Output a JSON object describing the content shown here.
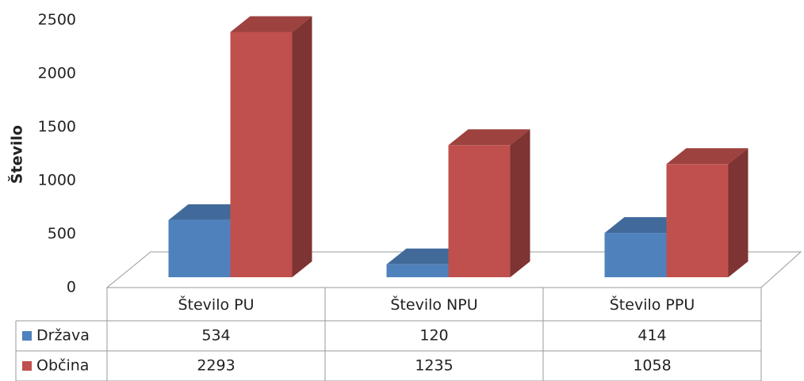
{
  "chart_data": {
    "type": "bar3d",
    "ylabel": "Število",
    "categories": [
      "Število PU",
      "Število NPU",
      "Število PPU"
    ],
    "series": [
      {
        "name": "Država",
        "color": "#4f81bd",
        "values": [
          534,
          120,
          414
        ]
      },
      {
        "name": "Občina",
        "color": "#c0504d",
        "values": [
          2293,
          1235,
          1058
        ]
      }
    ],
    "ylim": [
      0,
      2500
    ],
    "yticks": [
      0,
      500,
      1000,
      1500,
      2000,
      2500
    ],
    "grid": false,
    "data_table": true
  }
}
